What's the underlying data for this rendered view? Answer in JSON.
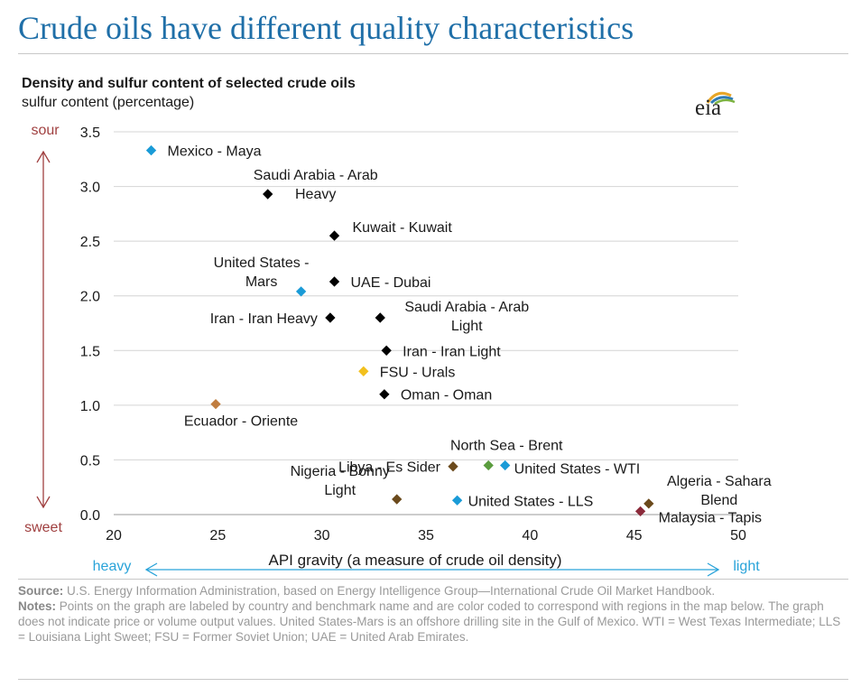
{
  "headline": "Crude oils have different quality characteristics",
  "logo_text": "eia",
  "chart_data": {
    "type": "scatter",
    "title": "Density and sulfur content of selected crude oils",
    "ylabel": "sulfur content (percentage)",
    "xlabel": "API gravity (a measure of crude oil density)",
    "xlim": [
      20,
      50
    ],
    "ylim": [
      0,
      3.5
    ],
    "xticks": [
      20,
      25,
      30,
      35,
      40,
      45,
      50
    ],
    "yticks": [
      "0.0",
      "0.5",
      "1.0",
      "1.5",
      "2.0",
      "2.5",
      "3.0",
      "3.5"
    ],
    "grid": "horizontal",
    "y_arrow_labels": {
      "top": "sour",
      "bottom": "sweet"
    },
    "x_arrow_labels": {
      "left": "heavy",
      "right": "light"
    },
    "colors": {
      "black": "#000000",
      "blue": "#1a9bd7",
      "orange": "#c07d3f",
      "yellow": "#f2c01e",
      "green": "#5a9c3e",
      "olive": "#6b4a1c",
      "maroon": "#8b2a3a",
      "sour_arrow": "#a04040",
      "light_arrow": "#29a3d9"
    },
    "points": [
      {
        "label": [
          "Mexico - Maya"
        ],
        "x": 21.8,
        "y": 3.33,
        "color": "blue"
      },
      {
        "label": [
          "Saudi Arabia - Arab",
          "Heavy"
        ],
        "x": 27.4,
        "y": 2.93,
        "color": "black"
      },
      {
        "label": [
          "Kuwait - Kuwait"
        ],
        "x": 30.6,
        "y": 2.55,
        "color": "black"
      },
      {
        "label": [
          "United States -",
          "Mars"
        ],
        "x": 29.0,
        "y": 2.04,
        "color": "blue"
      },
      {
        "label": [
          "UAE - Dubai"
        ],
        "x": 30.6,
        "y": 2.13,
        "color": "black"
      },
      {
        "label": [
          "Iran - Iran Heavy"
        ],
        "x": 30.4,
        "y": 1.8,
        "color": "black"
      },
      {
        "label": [
          "Saudi Arabia - Arab",
          "Light"
        ],
        "x": 32.8,
        "y": 1.8,
        "color": "black"
      },
      {
        "label": [
          "Iran - Iran Light"
        ],
        "x": 33.1,
        "y": 1.5,
        "color": "black"
      },
      {
        "label": [
          "FSU - Urals"
        ],
        "x": 32.0,
        "y": 1.31,
        "color": "yellow"
      },
      {
        "label": [
          "Oman - Oman"
        ],
        "x": 33.0,
        "y": 1.1,
        "color": "black"
      },
      {
        "label": [
          "Ecuador - Oriente"
        ],
        "x": 24.9,
        "y": 1.01,
        "color": "orange"
      },
      {
        "label": [
          "North Sea - Brent"
        ],
        "x": 38.0,
        "y": 0.45,
        "color": "green"
      },
      {
        "label": [
          "Libya - Es Sider"
        ],
        "x": 36.3,
        "y": 0.44,
        "color": "olive"
      },
      {
        "label": [
          "United States - WTI"
        ],
        "x": 38.8,
        "y": 0.45,
        "color": "blue"
      },
      {
        "label": [
          "Nigeria - Bonny",
          "Light"
        ],
        "x": 33.6,
        "y": 0.14,
        "color": "olive"
      },
      {
        "label": [
          "United States - LLS"
        ],
        "x": 36.5,
        "y": 0.13,
        "color": "blue"
      },
      {
        "label": [
          "Algeria - Sahara",
          "Blend"
        ],
        "x": 45.7,
        "y": 0.1,
        "color": "olive"
      },
      {
        "label": [
          "Malaysia - Tapis"
        ],
        "x": 45.3,
        "y": 0.03,
        "color": "maroon"
      }
    ]
  },
  "footer": {
    "source_label": "Source:",
    "source_text": "U.S. Energy Information Administration, based on Energy Intelligence Group—International Crude Oil Market Handbook.",
    "notes_label": "Notes:",
    "notes_text": "Points on the graph are labeled by country and benchmark name and are color coded to correspond with regions in the map below. The graph does not indicate price or volume output values. United States-Mars is an offshore drilling site in the Gulf of Mexico. WTI = West Texas Intermediate; LLS = Louisiana Light Sweet; FSU = Former Soviet Union; UAE = United Arab Emirates."
  }
}
